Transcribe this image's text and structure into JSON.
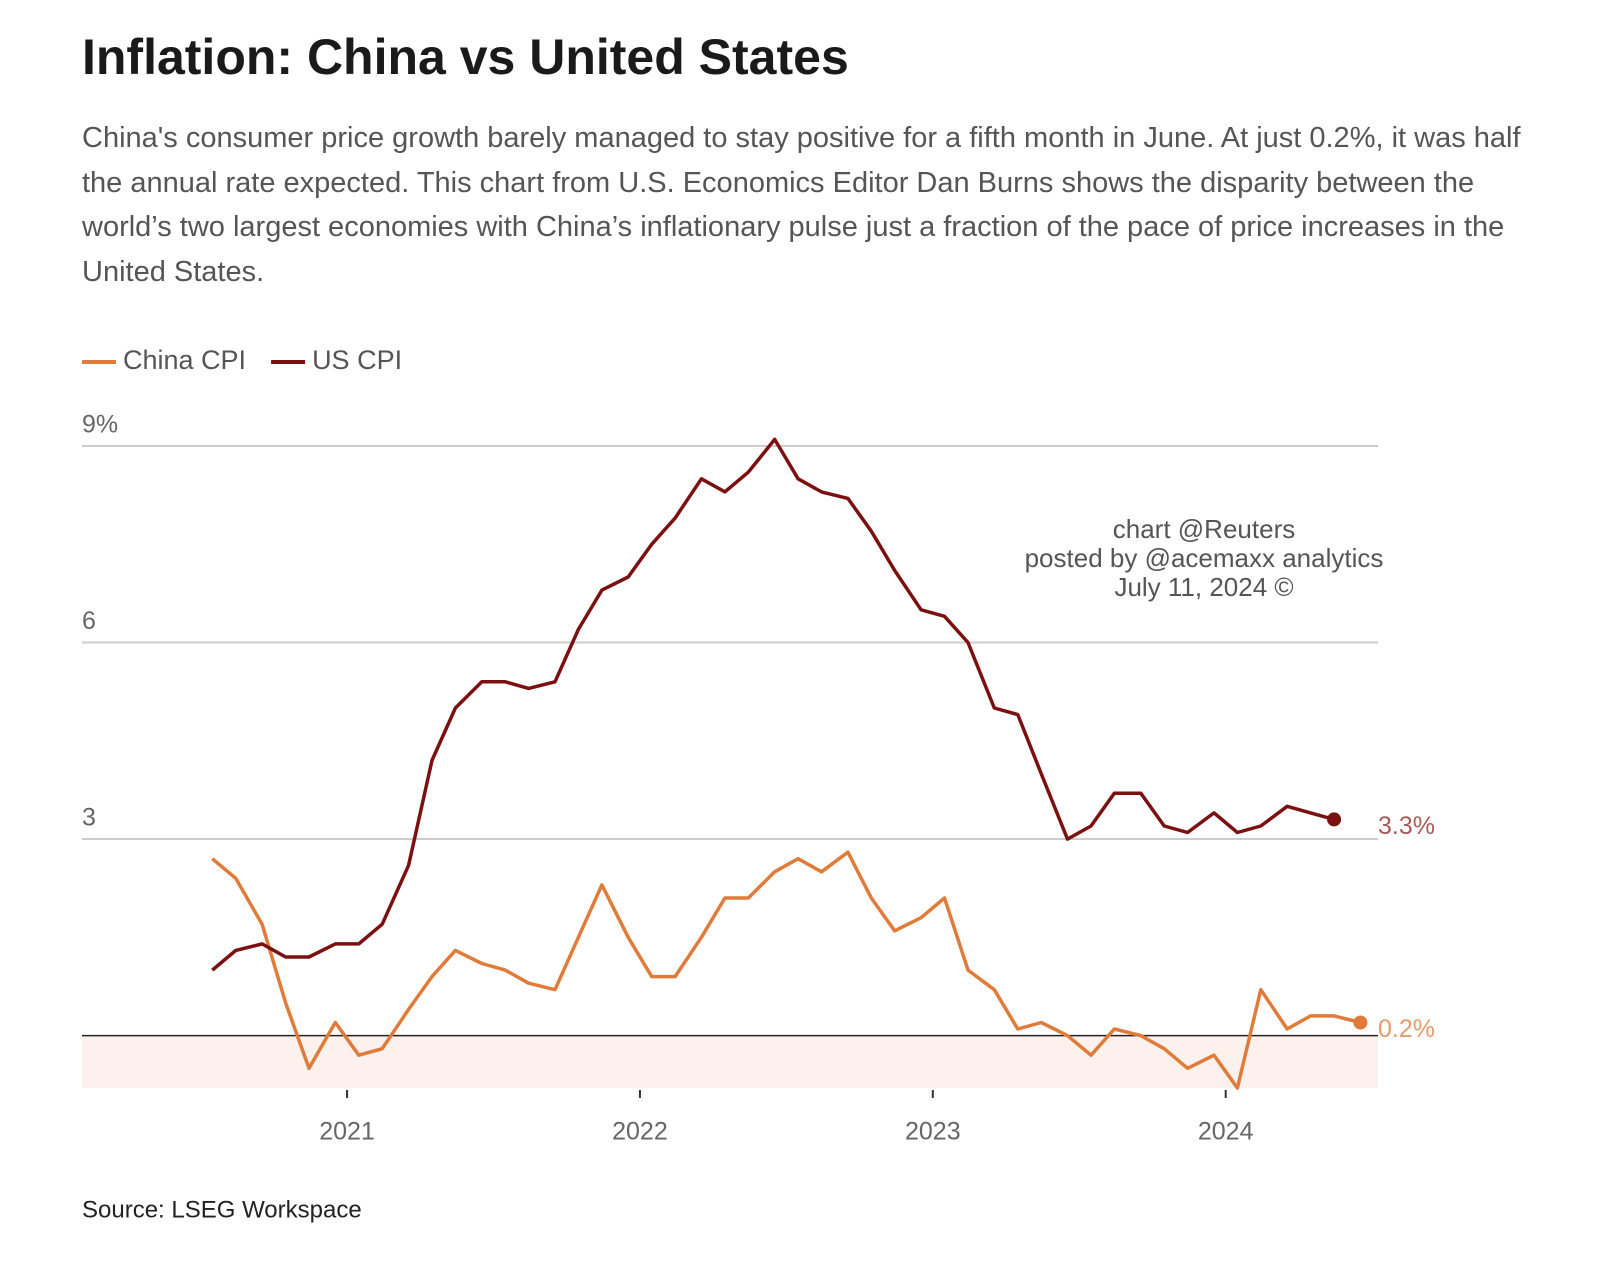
{
  "chart_data": {
    "type": "line",
    "title": "Inflation: China vs United States",
    "subtitle": "China's consumer price growth barely managed to stay positive for a fifth month in June. At just 0.2%, it was half the annual rate expected. This chart from U.S. Economics Editor Dan Burns shows the disparity between the world’s two largest economies with China’s inflationary pulse just a fraction of the pace of price increases in the United States.",
    "source": "Source: LSEG Workspace",
    "annotations": [
      "chart @Reuters",
      "posted by @acemaxx analytics",
      "July 11, 2024 ©"
    ],
    "x": [
      2020.54,
      2020.62,
      2020.71,
      2020.79,
      2020.87,
      2020.96,
      2021.04,
      2021.12,
      2021.21,
      2021.29,
      2021.37,
      2021.46,
      2021.54,
      2021.62,
      2021.71,
      2021.79,
      2021.87,
      2021.96,
      2022.04,
      2022.12,
      2022.21,
      2022.29,
      2022.37,
      2022.46,
      2022.54,
      2022.62,
      2022.71,
      2022.79,
      2022.87,
      2022.96,
      2023.04,
      2023.12,
      2023.21,
      2023.29,
      2023.37,
      2023.46,
      2023.54,
      2023.62,
      2023.71,
      2023.79,
      2023.87,
      2023.96,
      2024.04,
      2024.12,
      2024.21,
      2024.29,
      2024.37,
      2024.46
    ],
    "series": [
      {
        "name": "China CPI",
        "color": "#e07b39",
        "values": [
          2.7,
          2.4,
          1.7,
          0.5,
          -0.5,
          0.2,
          -0.3,
          -0.2,
          0.4,
          0.9,
          1.3,
          1.1,
          1.0,
          0.8,
          0.7,
          1.5,
          2.3,
          1.5,
          0.9,
          0.9,
          1.5,
          2.1,
          2.1,
          2.5,
          2.7,
          2.5,
          2.8,
          2.1,
          1.6,
          1.8,
          2.1,
          1.0,
          0.7,
          0.1,
          0.2,
          0.0,
          -0.3,
          0.1,
          0.0,
          -0.2,
          -0.5,
          -0.3,
          -0.8,
          0.7,
          0.1,
          0.3,
          0.3,
          0.2
        ],
        "value_labels": [
          null,
          null,
          null,
          null,
          null,
          null,
          null,
          null,
          null,
          null,
          null,
          null,
          null,
          null,
          null,
          null,
          null,
          null,
          null,
          null,
          null,
          null,
          null,
          null,
          null,
          null,
          null,
          null,
          null,
          null,
          null,
          null,
          null,
          null,
          null,
          null,
          null,
          null,
          null,
          null,
          null,
          null,
          null,
          null,
          null,
          null,
          null,
          "0.2%"
        ],
        "label_color": "#e89a6a"
      },
      {
        "name": "US CPI",
        "color": "#7b1010",
        "values": [
          1.0,
          1.3,
          1.4,
          1.2,
          1.2,
          1.4,
          1.4,
          1.7,
          2.6,
          4.2,
          5.0,
          5.4,
          5.4,
          5.3,
          5.4,
          6.2,
          6.8,
          7.0,
          7.5,
          7.9,
          8.5,
          8.3,
          8.6,
          9.1,
          8.5,
          8.3,
          8.2,
          7.7,
          7.1,
          6.5,
          6.4,
          6.0,
          5.0,
          4.9,
          4.0,
          3.0,
          3.2,
          3.7,
          3.7,
          3.2,
          3.1,
          3.4,
          3.1,
          3.2,
          3.5,
          3.4,
          3.3,
          null
        ],
        "value_labels": [
          null,
          null,
          null,
          null,
          null,
          null,
          null,
          null,
          null,
          null,
          null,
          null,
          null,
          null,
          null,
          null,
          null,
          null,
          null,
          null,
          null,
          null,
          null,
          null,
          null,
          null,
          null,
          null,
          null,
          null,
          null,
          null,
          null,
          null,
          null,
          null,
          null,
          null,
          null,
          null,
          null,
          null,
          null,
          null,
          null,
          null,
          "3.3%",
          null
        ],
        "label_color": "#a65a5a"
      }
    ],
    "xlim": [
      2020.095,
      2024.52
    ],
    "xticks": [
      2021,
      2022,
      2023,
      2024
    ],
    "ylim": [
      -0.8,
      9
    ],
    "yticks": [
      {
        "value": 9,
        "label": "9%"
      },
      6,
      3
    ],
    "grid": true,
    "legend": "top-left",
    "negative_fill": "#fdf1ee"
  }
}
